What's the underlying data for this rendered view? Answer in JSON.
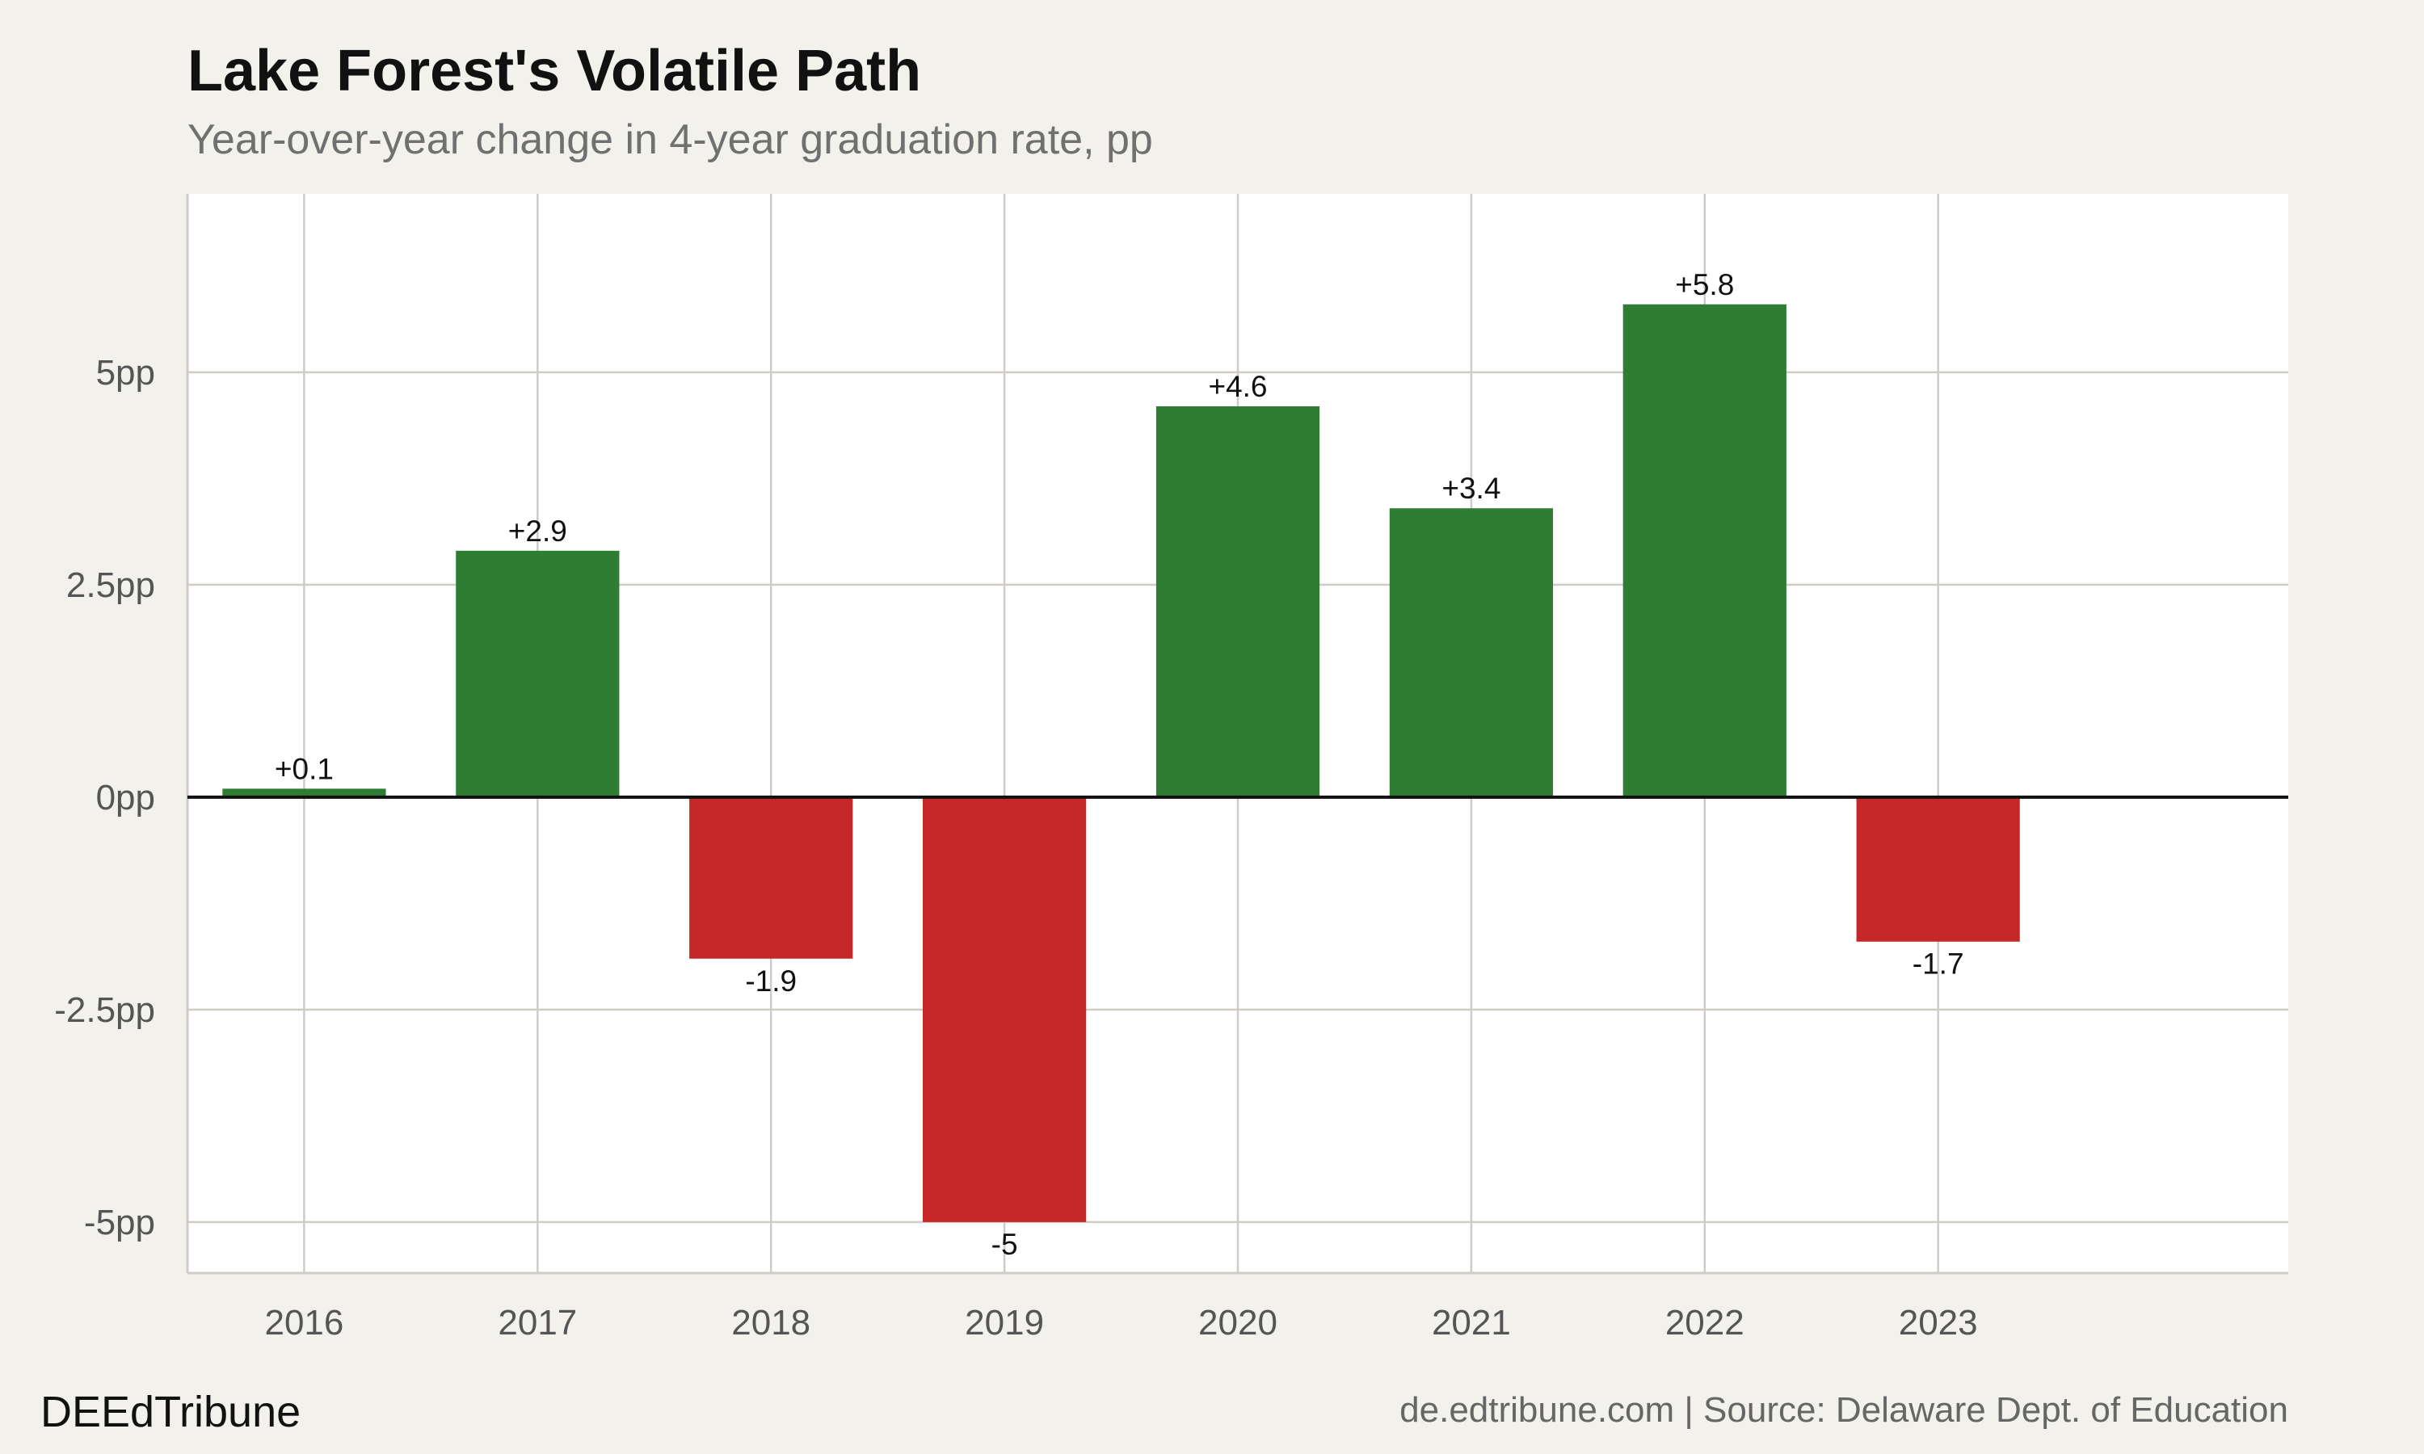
{
  "title": "Lake Forest's Volatile Path",
  "subtitle": "Year-over-year change in 4-year graduation rate, pp",
  "footer": {
    "brand": "DEEdTribune",
    "source": "de.edtribune.com | Source: Delaware Dept. of Education"
  },
  "colors": {
    "positive": "#2e7d32",
    "negative": "#c62828",
    "background": "#f3f1ec",
    "plot_background": "#ffffff"
  },
  "chart_data": {
    "type": "bar",
    "title": "Lake Forest's Volatile Path",
    "subtitle": "Year-over-year change in 4-year graduation rate, pp",
    "xlabel": "",
    "ylabel": "",
    "categories": [
      "2016",
      "2017",
      "2018",
      "2019",
      "2020",
      "2021",
      "2022",
      "2023"
    ],
    "values": [
      0.1,
      2.9,
      -1.9,
      -5,
      4.6,
      3.4,
      5.8,
      -1.7
    ],
    "data_labels": [
      "+0.1",
      "+2.9",
      "-1.9",
      "-5",
      "+4.6",
      "+3.4",
      "+5.8",
      "-1.7"
    ],
    "yticks": [
      -5,
      -2.5,
      0,
      2.5,
      5
    ],
    "ytick_labels": [
      "-5pp",
      "-2.5pp",
      "0pp",
      "2.5pp",
      "5pp"
    ],
    "ylim": [
      -5.6,
      7.1
    ],
    "x_slots": 9,
    "grid": true,
    "legend": "none"
  }
}
